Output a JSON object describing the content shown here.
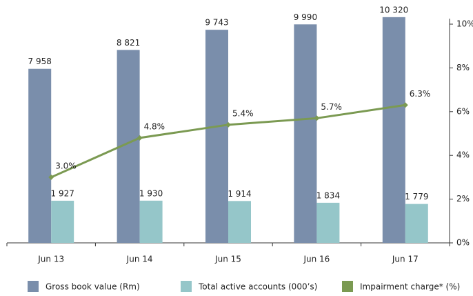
{
  "chart_data": {
    "type": "bar-line",
    "categories": [
      "Jun 13",
      "Jun 14",
      "Jun 15",
      "Jun 16",
      "Jun 17"
    ],
    "ylim": [
      0,
      10000
    ],
    "y2lim": [
      0,
      10
    ],
    "y2ticks": [
      {
        "value": 0,
        "label": "0%"
      },
      {
        "value": 2,
        "label": "2%"
      },
      {
        "value": 4,
        "label": "4%"
      },
      {
        "value": 6,
        "label": "6%"
      },
      {
        "value": 8,
        "label": "8%"
      },
      {
        "value": 10,
        "label": "10%"
      }
    ],
    "series": [
      {
        "name": "Gross book value (Rm)",
        "color": "#7a8eab",
        "type": "bar",
        "values": [
          7958,
          8821,
          9743,
          9990,
          10320
        ],
        "value_labels": [
          "7 958",
          "8 821",
          "9 743",
          "9 990",
          "10 320"
        ]
      },
      {
        "name": "Total active accounts (000’s)",
        "color": "#95c6c9",
        "type": "bar",
        "values": [
          1927,
          1930,
          1914,
          1834,
          1779
        ],
        "value_labels": [
          "1 927",
          "1 930",
          "1 914",
          "1 834",
          "1 779"
        ]
      },
      {
        "name": "Impairment charge* (%)",
        "color": "#7b9a52",
        "type": "line",
        "axis": "y2",
        "values": [
          3.0,
          4.8,
          5.4,
          5.7,
          6.3
        ],
        "value_labels": [
          "3.0%",
          "4.8%",
          "5.4%",
          "5.7%",
          "6.3%"
        ]
      }
    ]
  }
}
